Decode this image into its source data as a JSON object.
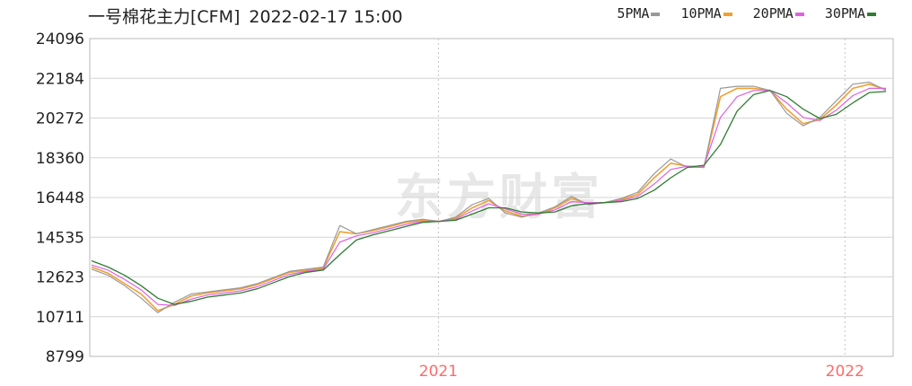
{
  "header": {
    "title": "一号棉花主力[CFM]",
    "timestamp": "2022-02-17 15:00"
  },
  "legend": [
    {
      "label": "5PMA",
      "color": "#999999"
    },
    {
      "label": "10PMA",
      "color": "#f0a030"
    },
    {
      "label": "20PMA",
      "color": "#e060e0"
    },
    {
      "label": "30PMA",
      "color": "#2e7d32"
    }
  ],
  "watermark": "东方财富",
  "chart_data": {
    "type": "line",
    "title": "一号棉花主力[CFM]",
    "x_labels": [
      "2021",
      "2022"
    ],
    "y_ticks": [
      "24096",
      "22184",
      "20272",
      "18360",
      "16448",
      "14535",
      "12623",
      "10711",
      "8799"
    ],
    "ylim": [
      8799,
      24096
    ],
    "grid": true,
    "series": [
      {
        "name": "5PMA",
        "color": "#999999",
        "values": [
          13000,
          12700,
          12200,
          11600,
          10900,
          11400,
          11800,
          11900,
          12000,
          12100,
          12300,
          12600,
          12900,
          13000,
          13100,
          15100,
          14700,
          14900,
          15100,
          15300,
          15400,
          15300,
          15500,
          16100,
          16400,
          15700,
          15500,
          15700,
          16000,
          16500,
          16100,
          16200,
          16400,
          16700,
          17600,
          18300,
          17900,
          17900,
          21700,
          21800,
          21800,
          21600,
          20500,
          19900,
          20300,
          21100,
          21900,
          22000,
          21600
        ]
      },
      {
        "name": "10PMA",
        "color": "#f0a030",
        "values": [
          13100,
          12800,
          12300,
          11800,
          11000,
          11300,
          11700,
          11850,
          11950,
          12050,
          12250,
          12550,
          12850,
          12950,
          13050,
          14800,
          14700,
          14850,
          15050,
          15250,
          15350,
          15300,
          15450,
          15950,
          16300,
          15800,
          15550,
          15650,
          15950,
          16400,
          16150,
          16200,
          16350,
          16600,
          17400,
          18100,
          17950,
          17900,
          21300,
          21700,
          21700,
          21600,
          20700,
          20000,
          20200,
          20900,
          21700,
          21900,
          21650
        ]
      },
      {
        "name": "20PMA",
        "color": "#e060e0",
        "values": [
          13200,
          12950,
          12500,
          12000,
          11300,
          11250,
          11550,
          11750,
          11850,
          11950,
          12150,
          12450,
          12750,
          12900,
          13000,
          14300,
          14600,
          14750,
          14950,
          15150,
          15300,
          15300,
          15400,
          15800,
          16150,
          15900,
          15650,
          15650,
          15850,
          16250,
          16200,
          16200,
          16300,
          16500,
          17100,
          17800,
          17950,
          17950,
          20300,
          21300,
          21600,
          21600,
          21000,
          20300,
          20150,
          20650,
          21350,
          21700,
          21700
        ]
      },
      {
        "name": "30PMA",
        "color": "#2e7d32",
        "values": [
          13400,
          13100,
          12700,
          12200,
          11600,
          11300,
          11450,
          11650,
          11750,
          11850,
          12050,
          12350,
          12650,
          12850,
          12950,
          13700,
          14400,
          14650,
          14850,
          15050,
          15250,
          15300,
          15350,
          15650,
          15950,
          15950,
          15750,
          15700,
          15750,
          16050,
          16150,
          16200,
          16250,
          16400,
          16800,
          17400,
          17900,
          18000,
          19000,
          20600,
          21400,
          21600,
          21300,
          20700,
          20250,
          20450,
          21000,
          21500,
          21550
        ]
      }
    ]
  }
}
